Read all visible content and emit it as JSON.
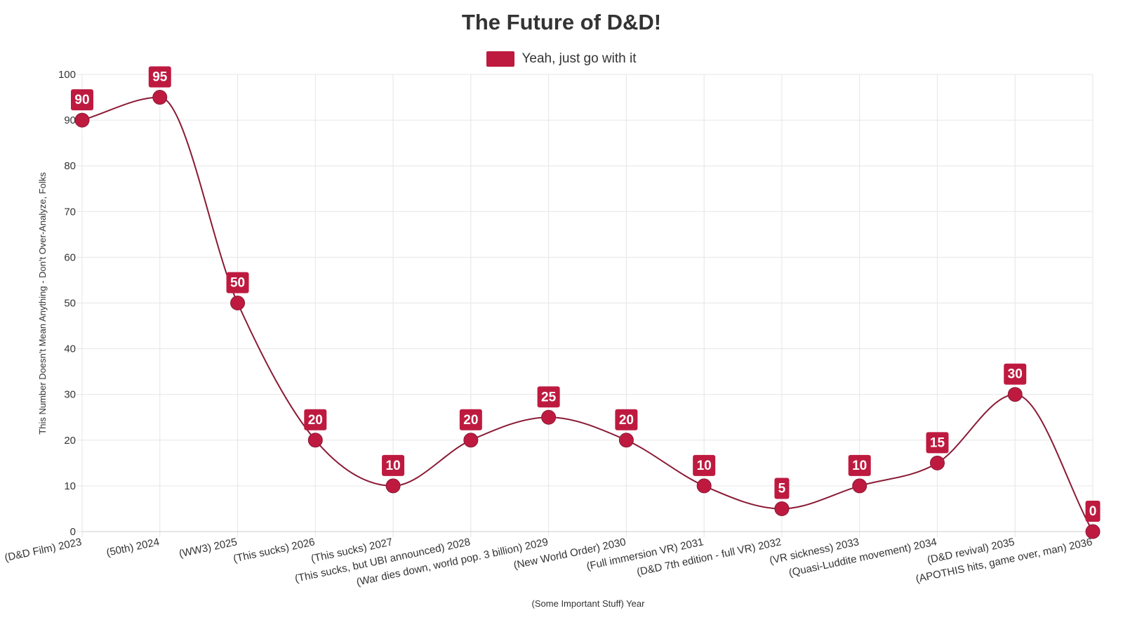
{
  "colors": {
    "series": "#be1a40",
    "line": "#8a1a35",
    "grid": "#e6e6e6",
    "text": "#333333"
  },
  "chart_data": {
    "type": "line",
    "title": "The Future of D&D!",
    "xlabel": "(Some Important Stuff) Year",
    "ylabel": "This Number Doesn't Mean Anything - Don't Over-Analyze, Folks",
    "ylim": [
      0,
      100
    ],
    "yticks": [
      0,
      10,
      20,
      30,
      40,
      50,
      60,
      70,
      80,
      90,
      100
    ],
    "grid": true,
    "legend_position": "top-center",
    "categories": [
      "(D&D Film) 2023",
      "(50th) 2024",
      "(WW3) 2025",
      "(This sucks) 2026",
      "(This sucks) 2027",
      "(This sucks, but UBI announced) 2028",
      "(War dies down, world pop. 3 billion) 2029",
      "(New World Order) 2030",
      "(Full immersion VR) 2031",
      "(D&D 7th edition - full VR) 2032",
      "(VR sickness) 2033",
      "(Quasi-Luddite movement) 2034",
      "(D&D revival) 2035",
      "(APOTHIS hits, game over, man) 2036"
    ],
    "series": [
      {
        "name": "Yeah, just go with it",
        "values": [
          90,
          95,
          50,
          20,
          10,
          20,
          25,
          20,
          10,
          5,
          10,
          15,
          30,
          0
        ]
      }
    ]
  }
}
